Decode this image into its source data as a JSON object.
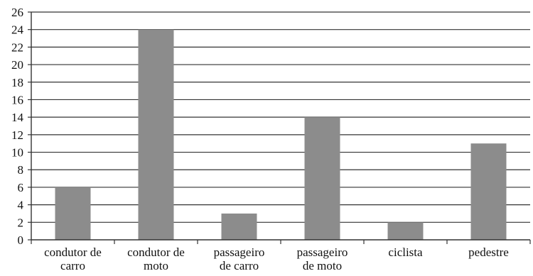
{
  "chart_data": {
    "type": "bar",
    "categories": [
      [
        "condutor de",
        "carro"
      ],
      [
        "condutor de",
        "moto"
      ],
      [
        "passageiro",
        "de carro"
      ],
      [
        "passageiro",
        "de moto"
      ],
      [
        "ciclista"
      ],
      [
        "pedestre"
      ]
    ],
    "values": [
      6,
      24,
      3,
      14,
      2,
      11
    ],
    "ylim": [
      0,
      26
    ],
    "yticks": [
      0,
      2,
      4,
      6,
      8,
      10,
      12,
      14,
      16,
      18,
      20,
      22,
      24,
      26
    ],
    "grid": true,
    "legend": "none",
    "title": "",
    "xlabel": "",
    "ylabel": "",
    "colors": {
      "bar": "#8c8c8c",
      "grid": "#333333",
      "axis": "#333333"
    }
  }
}
